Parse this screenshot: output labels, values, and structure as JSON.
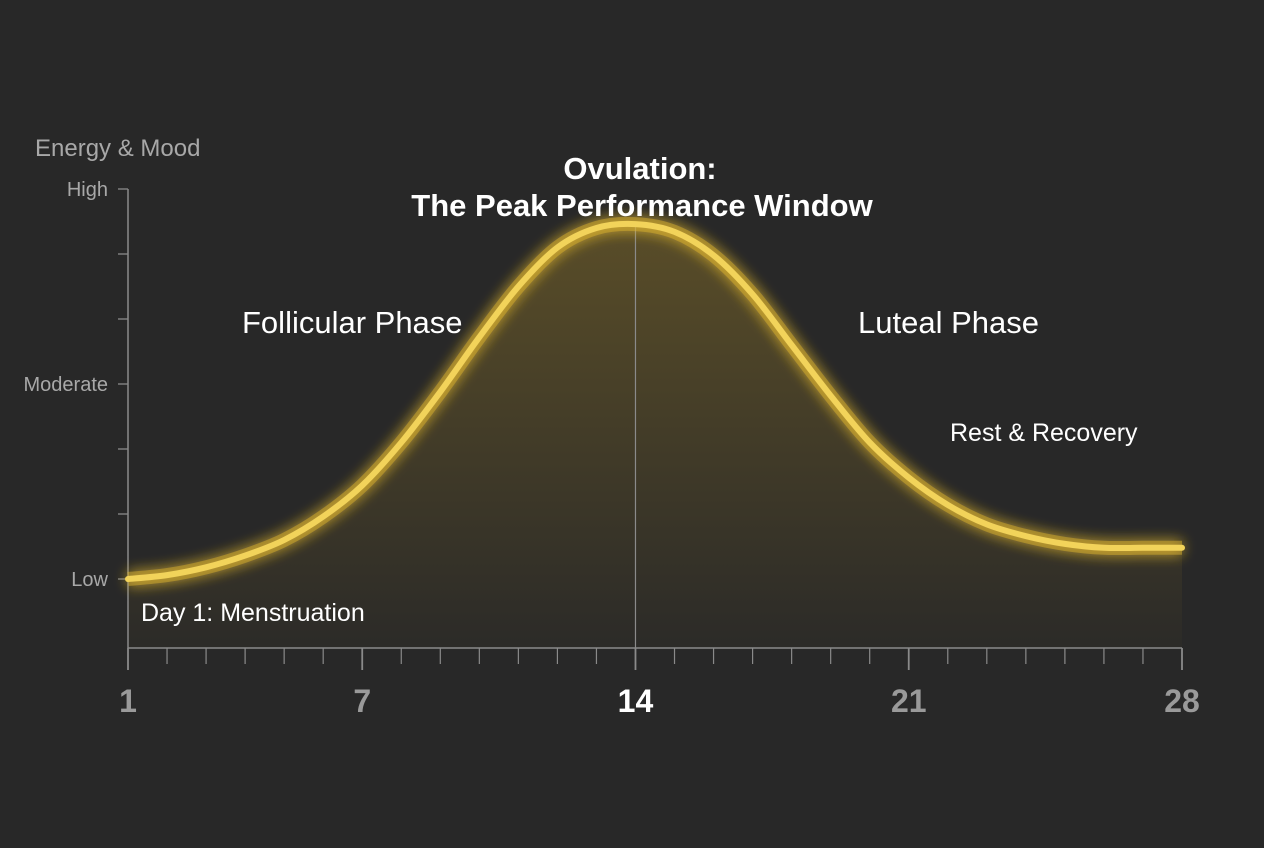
{
  "colors": {
    "background": "#282828",
    "curve": "#f2d35a",
    "glow": "#e0b530",
    "axis": "#8a8a8a",
    "label_text": "#ffffff",
    "muted_text": "#a8a8a8"
  },
  "chart_data": {
    "type": "line",
    "title": "Ovulation:",
    "subtitle": "The Peak Performance Window",
    "ylabel": "Energy & Mood",
    "xlabel": "",
    "x_ticks": [
      1,
      7,
      14,
      21,
      28
    ],
    "x_tick_labels": [
      "1",
      "7",
      "14",
      "21",
      "28"
    ],
    "xlim": [
      1,
      28
    ],
    "y_ticks": [
      0,
      0.5,
      1
    ],
    "y_tick_labels": [
      "Low",
      "Moderate",
      "High"
    ],
    "ylim": [
      0,
      1
    ],
    "grid": false,
    "annotations": [
      {
        "text": "Follicular Phase"
      },
      {
        "text": "Luteal Phase"
      },
      {
        "text": "Rest & Recovery"
      },
      {
        "text": "Day 1: Menstruation"
      }
    ],
    "series": [
      {
        "x": [
          1,
          2,
          3,
          4,
          5,
          6,
          7,
          8,
          9,
          10,
          11,
          12,
          13,
          14,
          15,
          16,
          17,
          18,
          19,
          20,
          21,
          22,
          23,
          24,
          25,
          26,
          27,
          28
        ],
        "values": [
          0.0,
          0.01,
          0.03,
          0.06,
          0.1,
          0.16,
          0.24,
          0.35,
          0.48,
          0.62,
          0.75,
          0.85,
          0.9,
          0.91,
          0.89,
          0.83,
          0.73,
          0.6,
          0.47,
          0.35,
          0.26,
          0.19,
          0.14,
          0.11,
          0.09,
          0.08,
          0.08,
          0.08
        ]
      }
    ]
  }
}
